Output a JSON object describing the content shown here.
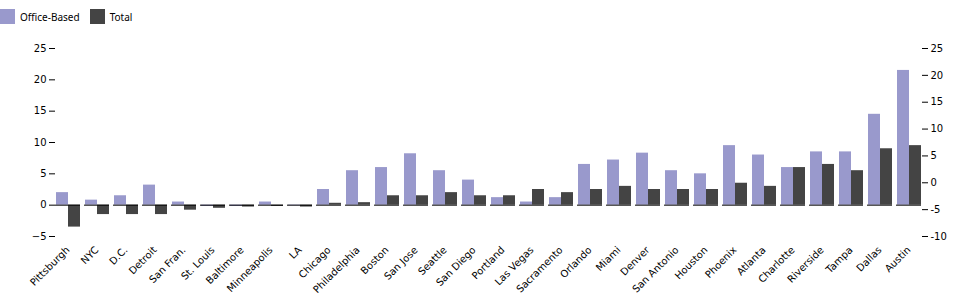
{
  "chart_data": {
    "type": "bar",
    "categories": [
      "Pittsburgh",
      "NYC",
      "D.C.",
      "Detroit",
      "San Fran.",
      "St. Louis",
      "Baltimore",
      "Minneapolis",
      "LA",
      "Chicago",
      "Philadelphia",
      "Boston",
      "San Jose",
      "Seattle",
      "San Diego",
      "Portland",
      "Las Vegas",
      "Sacramento",
      "Orlando",
      "Miami",
      "Denver",
      "San Antonio",
      "Houston",
      "Phoenix",
      "Atlanta",
      "Charlotte",
      "Riverside",
      "Tampa",
      "Dallas",
      "Austin"
    ],
    "series": [
      {
        "name": "Office-Based",
        "color": "#9999cc",
        "values": [
          2.0,
          0.8,
          1.5,
          3.2,
          0.5,
          -0.2,
          -0.2,
          0.5,
          -0.1,
          2.5,
          5.5,
          6.0,
          8.2,
          5.5,
          4.0,
          1.2,
          0.5,
          1.2,
          6.5,
          7.2,
          8.3,
          5.5,
          5.0,
          9.5,
          8.0,
          6.0,
          8.5,
          8.5,
          14.5,
          21.5
        ]
      },
      {
        "name": "Total",
        "color": "#444444",
        "values": [
          -3.5,
          -1.5,
          -1.5,
          -1.5,
          -0.8,
          -0.5,
          -0.3,
          -0.2,
          -0.3,
          0.3,
          0.4,
          1.5,
          1.5,
          2.0,
          1.5,
          1.5,
          2.5,
          2.0,
          2.5,
          3.0,
          2.5,
          2.5,
          2.5,
          3.5,
          3.0,
          6.0,
          6.5,
          5.5,
          9.0,
          9.5
        ]
      }
    ],
    "ylim": [
      -5,
      25
    ],
    "yticks": [
      -5,
      0,
      5,
      10,
      15,
      20,
      25
    ],
    "y2lim": [
      -10,
      25
    ],
    "y2ticks": [
      -10,
      -5,
      0,
      5,
      10,
      15,
      20,
      25
    ],
    "grid": false,
    "legend": "top"
  }
}
